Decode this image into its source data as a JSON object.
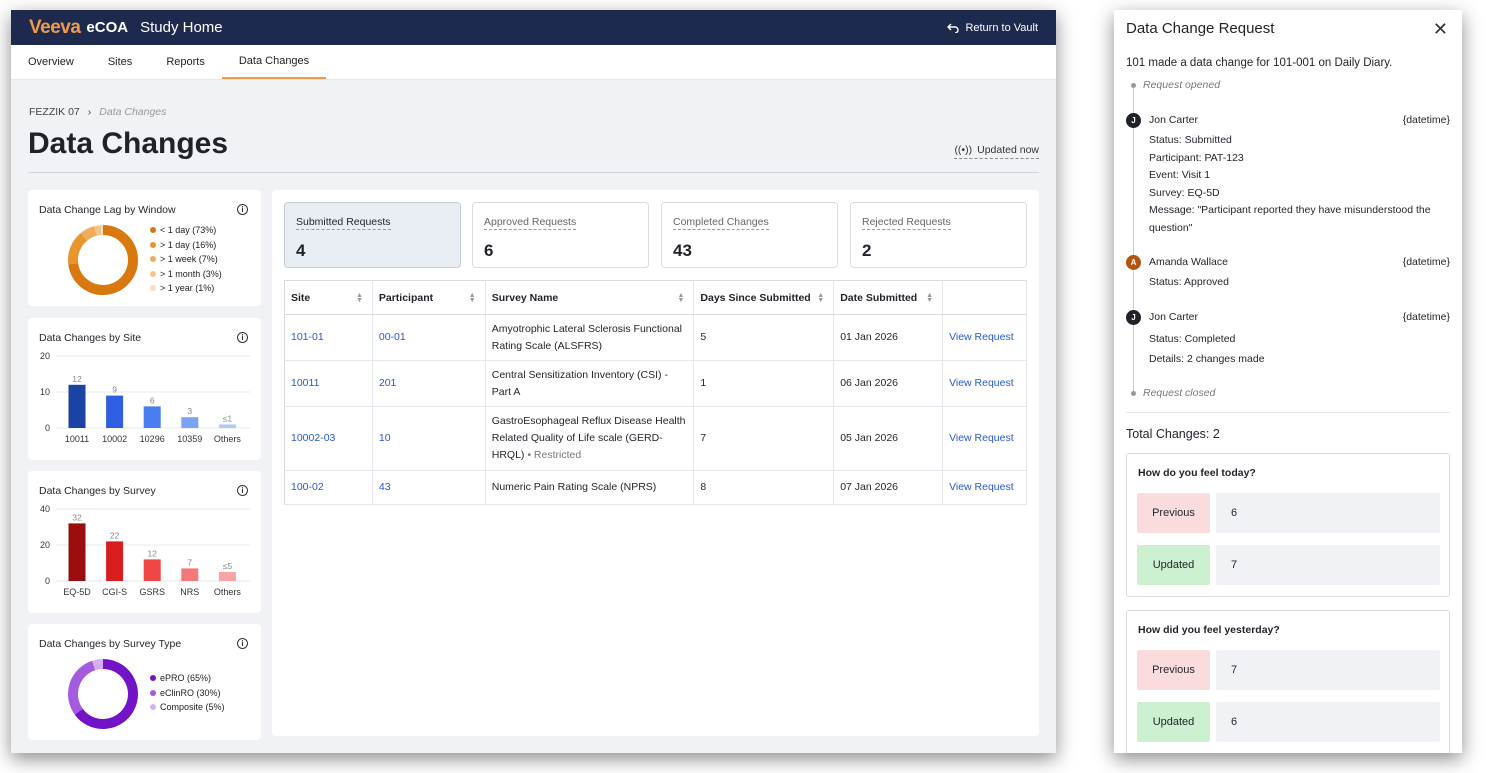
{
  "app": {
    "logo": "Veeva",
    "product": "eCOA",
    "title": "Study Home",
    "return_label": "Return to Vault"
  },
  "tabs": [
    "Overview",
    "Sites",
    "Reports",
    "Data Changes"
  ],
  "breadcrumb": {
    "study": "FEZZIK 07",
    "current": "Data Changes"
  },
  "page_title": "Data Changes",
  "updated_label": "Updated now",
  "lag_card": {
    "title": "Data Change Lag by Window",
    "legend": [
      "< 1 day (73%)",
      "> 1 day (16%)",
      "> 1 week (7%)",
      "> 1 month (3%)",
      "> 1 year (1%)"
    ]
  },
  "site_card": {
    "title": "Data Changes by Site"
  },
  "survey_card": {
    "title": "Data Changes by Survey"
  },
  "type_card": {
    "title": "Data Changes by Survey Type",
    "legend": [
      "ePRO (65%)",
      "eClinRO (30%)",
      "Composite (5%)"
    ]
  },
  "chart_data": [
    {
      "type": "pie",
      "title": "Data Change Lag by Window",
      "categories": [
        "< 1 day",
        "> 1 day",
        "> 1 week",
        "> 1 month",
        "> 1 year"
      ],
      "values": [
        73,
        16,
        7,
        3,
        1
      ],
      "colors": [
        "#d9780f",
        "#e8952d",
        "#f0ac5a",
        "#f5c48d",
        "#fae0c2"
      ],
      "legend": "right"
    },
    {
      "type": "bar",
      "title": "Data Changes by Site",
      "categories": [
        "10011",
        "10002",
        "10296",
        "10359",
        "Others"
      ],
      "values": [
        12,
        9,
        6,
        3,
        1
      ],
      "value_labels": [
        "12",
        "9",
        "6",
        "3",
        "≤1"
      ],
      "ylim": [
        0,
        20
      ],
      "yticks": [
        "0",
        "10",
        "20"
      ],
      "colors": [
        "#1a43a3",
        "#2e5fe0",
        "#4a7df0",
        "#7aa3f5",
        "#b0c9fa"
      ],
      "grid": true
    },
    {
      "type": "bar",
      "title": "Data Changes by Survey",
      "categories": [
        "EQ-5D",
        "CGI-S",
        "GSRS",
        "NRS",
        "Others"
      ],
      "values": [
        32,
        22,
        12,
        7,
        5
      ],
      "value_labels": [
        "32",
        "22",
        "12",
        "7",
        "≤5"
      ],
      "ylim": [
        0,
        40
      ],
      "yticks": [
        "0",
        "20",
        "40"
      ],
      "colors": [
        "#9b0d0d",
        "#d81d1d",
        "#f04545",
        "#f57878",
        "#f9a5a5"
      ],
      "grid": true
    },
    {
      "type": "pie",
      "title": "Data Changes by Survey Type",
      "categories": [
        "ePRO",
        "eClinRO",
        "Composite"
      ],
      "values": [
        65,
        30,
        5
      ],
      "colors": [
        "#7213c7",
        "#a55be0",
        "#d4b0f2"
      ],
      "legend": "right"
    }
  ],
  "stats": [
    {
      "label": "Submitted Requests",
      "value": "4"
    },
    {
      "label": "Approved Requests",
      "value": "6"
    },
    {
      "label": "Completed Changes",
      "value": "43"
    },
    {
      "label": "Rejected Requests",
      "value": "2"
    }
  ],
  "table": {
    "columns": [
      "Site",
      "Participant",
      "Survey Name",
      "Days Since Submitted",
      "Date Submitted"
    ],
    "action_label": "View Request",
    "rows": [
      {
        "site": "101-01",
        "participant": "00-01",
        "survey": "Amyotrophic Lateral Sclerosis Functional Rating Scale (ALSFRS)",
        "restricted": "",
        "days": "5",
        "date": "01 Jan 2026"
      },
      {
        "site": "10011",
        "participant": "201",
        "survey": "Central Sensitization Inventory (CSI) - Part A",
        "restricted": "",
        "days": "1",
        "date": "06 Jan 2026"
      },
      {
        "site": "10002-03",
        "participant": "10",
        "survey": "GastroEsophageal Reflux Disease Health Related Quality of Life scale (GERD-HRQL)",
        "restricted": "• Restricted",
        "days": "7",
        "date": "05 Jan 2026"
      },
      {
        "site": "100-02",
        "participant": "43",
        "survey": "Numeric Pain Rating Scale (NPRS)",
        "restricted": "",
        "days": "8",
        "date": "07 Jan 2026"
      }
    ]
  },
  "drawer": {
    "title": "Data Change Request",
    "summary": "101 made a data change for 101-001 on Daily Diary.",
    "opened": "Request opened",
    "closed": "Request closed",
    "events": [
      {
        "initial": "J",
        "name": "Jon Carter",
        "date": "{datetime}",
        "details": [
          {
            "k": "Status:",
            "v": "Submitted"
          },
          {
            "k": "Participant:",
            "v": "PAT-123"
          },
          {
            "k": "Event:",
            "v": "Visit 1"
          },
          {
            "k": "Survey:",
            "v": "EQ-5D"
          },
          {
            "k": "Message:",
            "v": "\"Participant reported they have misunderstood the question\""
          }
        ]
      },
      {
        "initial": "A",
        "name": "Amanda Wallace",
        "date": "{datetime}",
        "details": [
          {
            "k": "Status:",
            "v": "Approved"
          }
        ]
      },
      {
        "initial": "J",
        "name": "Jon Carter",
        "date": "{datetime}",
        "details": [
          {
            "k": "Status:",
            "v": "Completed"
          },
          {
            "k": "Details:",
            "v": "2 changes made"
          }
        ]
      }
    ],
    "total_changes": "Total Changes: 2",
    "changes": [
      {
        "question": "How do you feel today?",
        "previous_label": "Previous",
        "previous": "6",
        "updated_label": "Updated",
        "updated": "7"
      },
      {
        "question": "How did you feel yesterday?",
        "previous_label": "Previous",
        "previous": "7",
        "updated_label": "Updated",
        "updated": "6"
      }
    ]
  },
  "colors": {
    "topbar": "#1d2a4d",
    "brand_orange": "#f2994a",
    "link": "#2a59c9",
    "avatar_j": "#1f2329",
    "avatar_a": "#b5540f"
  }
}
